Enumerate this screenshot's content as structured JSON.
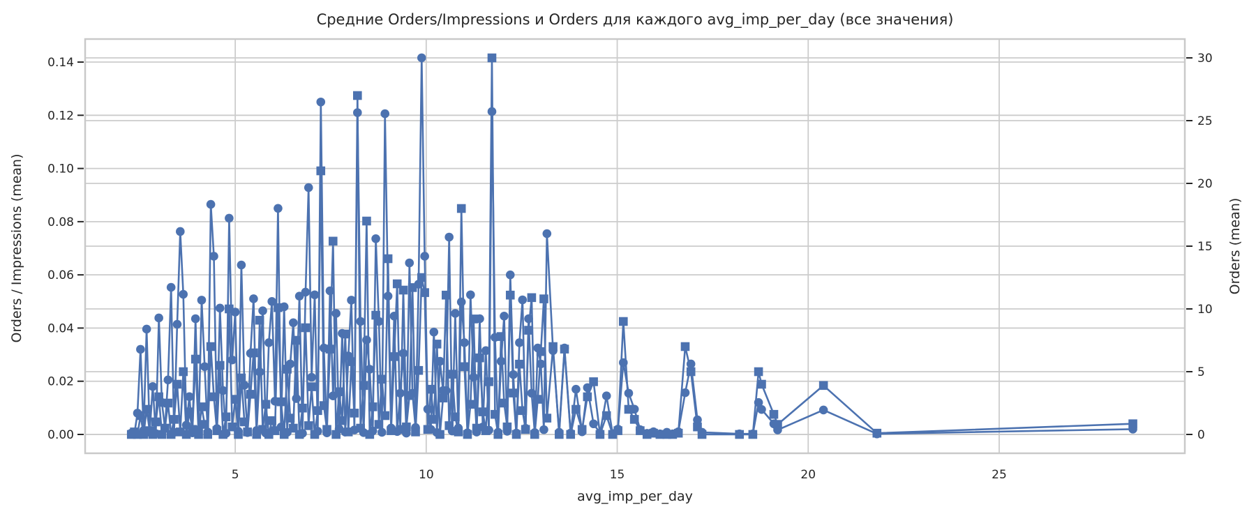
{
  "title": "Средние Orders/Impressions и Orders для каждого avg_imp_per_day (все значения)",
  "style": {
    "series_color": "#4c72b0",
    "grid_color": "#cccccc",
    "spine_color": "#c9c9c9",
    "text_color": "#262626",
    "background": "#ffffff"
  },
  "chart_data": {
    "type": "line",
    "title": "Средние Orders/Impressions и Orders для каждого avg_imp_per_day (все значения)",
    "xlabel": "avg_imp_per_day",
    "ylabel_left": "Orders / Impressions (mean)",
    "ylabel_right": "Orders (mean)",
    "legend": "none",
    "grid": true,
    "x_ticks": [
      5,
      10,
      15,
      20,
      25
    ],
    "y_left_ticks": [
      "0.00",
      "0.02",
      "0.04",
      "0.06",
      "0.08",
      "0.10",
      "0.12",
      "0.14"
    ],
    "y_right_ticks": [
      0,
      5,
      10,
      15,
      20,
      25,
      30
    ],
    "x_range": [
      1.07,
      29.86
    ],
    "y_left_range": [
      -0.00708,
      0.14866
    ],
    "y_right_range": [
      -1.5,
      31.5
    ],
    "x": [
      2.28,
      2.36,
      2.44,
      2.52,
      2.6,
      2.68,
      2.76,
      2.84,
      2.92,
      3,
      3.08,
      3.16,
      3.24,
      3.32,
      3.4,
      3.48,
      3.56,
      3.64,
      3.72,
      3.8,
      3.88,
      3.96,
      4.04,
      4.12,
      4.2,
      4.28,
      4.36,
      4.44,
      4.52,
      4.6,
      4.68,
      4.76,
      4.84,
      4.92,
      5,
      5.08,
      5.16,
      5.24,
      5.32,
      5.4,
      5.48,
      5.56,
      5.64,
      5.72,
      5.8,
      5.88,
      5.96,
      6.04,
      6.12,
      6.2,
      6.28,
      6.36,
      6.44,
      6.52,
      6.6,
      6.68,
      6.76,
      6.84,
      6.92,
      7,
      7.08,
      7.16,
      7.24,
      7.32,
      7.4,
      7.48,
      7.56,
      7.64,
      7.72,
      7.8,
      7.88,
      7.96,
      8.04,
      8.12,
      8.2,
      8.28,
      8.36,
      8.44,
      8.52,
      8.6,
      8.68,
      8.76,
      8.84,
      8.92,
      9,
      9.08,
      9.16,
      9.24,
      9.32,
      9.4,
      9.48,
      9.56,
      9.64,
      9.72,
      9.8,
      9.88,
      9.96,
      10.04,
      10.12,
      10.2,
      10.28,
      10.36,
      10.44,
      10.52,
      10.6,
      10.68,
      10.76,
      10.84,
      10.92,
      11,
      11.08,
      11.16,
      11.24,
      11.32,
      11.4,
      11.48,
      11.56,
      11.64,
      11.72,
      11.8,
      11.88,
      11.96,
      12.04,
      12.12,
      12.2,
      12.28,
      12.36,
      12.44,
      12.52,
      12.6,
      12.68,
      12.76,
      12.84,
      12.92,
      13,
      13.08,
      13.16,
      13.32,
      13.48,
      13.62,
      13.78,
      13.92,
      14.08,
      14.22,
      14.38,
      14.55,
      14.72,
      14.88,
      15.02,
      15.16,
      15.3,
      15.45,
      15.6,
      15.78,
      15.95,
      16.12,
      16.3,
      16.45,
      16.6,
      16.78,
      16.93,
      17.1,
      17.22,
      18.2,
      18.55,
      18.7,
      18.78,
      19.1,
      19.2,
      20.4,
      21.8,
      28.5
    ],
    "series": [
      {
        "name": "Orders / Impressions (mean)",
        "axis": "left",
        "marker": "circle",
        "color": "#4c72b0",
        "values": [
          0.0005,
          0.0002,
          0.008,
          0.032,
          0.0015,
          0.0396,
          0.0008,
          0.018,
          0.0003,
          0.0438,
          0.012,
          0.0025,
          0.0205,
          0.0553,
          0.0008,
          0.0414,
          0.0763,
          0.0527,
          0.0035,
          0.0142,
          0.0006,
          0.0435,
          0.0018,
          0.0505,
          0.0255,
          0.0009,
          0.0865,
          0.067,
          0.0022,
          0.0475,
          0.0165,
          0.0004,
          0.0813,
          0.028,
          0.046,
          0.0012,
          0.0637,
          0.0185,
          0.0007,
          0.0305,
          0.051,
          0.0015,
          0.0235,
          0.0465,
          0.0005,
          0.0345,
          0.05,
          0.0125,
          0.085,
          0.0028,
          0.048,
          0.0008,
          0.0265,
          0.042,
          0.0135,
          0.052,
          0.0004,
          0.0535,
          0.0928,
          0.0215,
          0.0525,
          0.0012,
          0.125,
          0.0325,
          0.0006,
          0.054,
          0.0145,
          0.0455,
          0.0021,
          0.038,
          0.0009,
          0.0295,
          0.0505,
          0.0017,
          0.121,
          0.0425,
          0.0007,
          0.0355,
          0.0245,
          0.0013,
          0.0736,
          0.0425,
          0.0008,
          0.1206,
          0.052,
          0.0024,
          0.0445,
          0.0011,
          0.0155,
          0.0305,
          0.0005,
          0.0645,
          0.0155,
          0.0026,
          0.0565,
          0.1416,
          0.067,
          0.0095,
          0.0019,
          0.0385,
          0.0007,
          0.0275,
          0.0165,
          0.0165,
          0.0742,
          0.0013,
          0.0455,
          0.0024,
          0.0498,
          0.0345,
          0.0006,
          0.0525,
          0.0215,
          0.0009,
          0.0435,
          0.0028,
          0.0315,
          0.0016,
          0.1214,
          0.0365,
          0.0008,
          0.0275,
          0.0445,
          0.0012,
          0.06,
          0.0225,
          0.0005,
          0.0345,
          0.0506,
          0.0023,
          0.0435,
          0.0155,
          0.0007,
          0.0325,
          0.0265,
          0.0018,
          0.0755,
          0.0315,
          0.0008,
          0.0325,
          0.0005,
          0.017,
          0.001,
          0.0176,
          0.004,
          0.0005,
          0.0145,
          0.0003,
          0.002,
          0.027,
          0.0155,
          0.0095,
          0.0018,
          0.0004,
          0.001,
          0.0002,
          0.0008,
          0.0002,
          0.001,
          0.0157,
          0.0265,
          0.0055,
          0.0008,
          0.0002,
          0.0002,
          0.012,
          0.0094,
          0.004,
          0.0017,
          0.0092,
          0.0002,
          0.002
        ]
      },
      {
        "name": "Orders (mean)",
        "axis": "right",
        "marker": "square",
        "color": "#4c72b0",
        "values": [
          0,
          0.2,
          0,
          1.5,
          0,
          2,
          0.3,
          0,
          1,
          3,
          0,
          0.5,
          2.5,
          0,
          1.2,
          4,
          0.2,
          5,
          0,
          1.8,
          0.4,
          6,
          0,
          2.2,
          0.8,
          0,
          7,
          3,
          0.3,
          5.5,
          0,
          1.4,
          10,
          0.6,
          2.8,
          0,
          4.5,
          1,
          0.2,
          3.2,
          6.5,
          0,
          9.1,
          0.4,
          2.4,
          0,
          1.1,
          0.3,
          10.1,
          2.6,
          0,
          5.2,
          1.3,
          0.5,
          7.5,
          0,
          2.1,
          8.5,
          0.7,
          3.8,
          0,
          1.9,
          21,
          2.3,
          0.4,
          6.8,
          15.4,
          0,
          3.4,
          1.1,
          8,
          0.2,
          5.8,
          1.7,
          27,
          0.5,
          3.9,
          17,
          0,
          2.2,
          9.5,
          0.8,
          4.4,
          1.5,
          14,
          0.3,
          6.2,
          12,
          0.4,
          11.5,
          0.6,
          3.1,
          11.7,
          0.2,
          5.1,
          12.5,
          11.3,
          0.4,
          3.6,
          1.2,
          7.2,
          0,
          2.9,
          11.1,
          0.7,
          4.8,
          1.4,
          0.2,
          18,
          5.4,
          0,
          2.4,
          9.2,
          0.5,
          6.1,
          1.8,
          0.3,
          4.2,
          30,
          1.6,
          0,
          7.8,
          2.5,
          0.6,
          11.1,
          3.3,
          0,
          5.6,
          1.9,
          0.4,
          8.3,
          10.9,
          0,
          2.8,
          6.6,
          10.8,
          1.3,
          7,
          0,
          6.8,
          0,
          2,
          0.4,
          3,
          4.2,
          0,
          1.5,
          0,
          0.3,
          9,
          2,
          1.2,
          0.3,
          0,
          0.1,
          0,
          0,
          0,
          0.1,
          7,
          5,
          0.6,
          0,
          0,
          0,
          5,
          4,
          1.6,
          0.8,
          3.9,
          0.1,
          0.85
        ]
      }
    ]
  }
}
